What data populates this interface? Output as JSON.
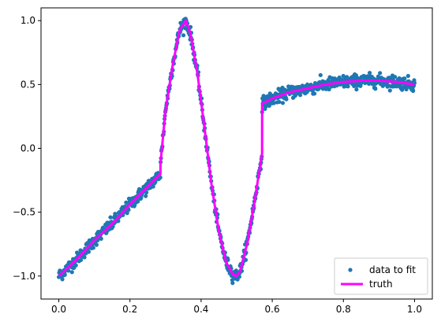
{
  "chart_data": {
    "type": "scatter",
    "xlim": [
      -0.05,
      1.05
    ],
    "ylim": [
      -1.18,
      1.1
    ],
    "x_ticks": [
      0.0,
      0.2,
      0.4,
      0.6,
      0.8,
      1.0
    ],
    "x_tick_labels": [
      "0.0",
      "0.2",
      "0.4",
      "0.6",
      "0.8",
      "1.0"
    ],
    "y_ticks": [
      -1.0,
      -0.5,
      0.0,
      0.5,
      1.0
    ],
    "y_tick_labels": [
      "−1.0",
      "−0.5",
      "0.0",
      "0.5",
      "1.0"
    ],
    "grid": false,
    "legend_position": "lower-right",
    "series": [
      {
        "name": "data to fit",
        "kind": "scatter",
        "color": "#1f77b4",
        "n_points": 1000,
        "noise_sd": 0.025
      },
      {
        "name": "truth",
        "kind": "line",
        "color": "#ff00ff",
        "x": [
          0.0,
          0.05,
          0.1,
          0.15,
          0.2,
          0.25,
          0.2857,
          0.2858,
          0.3,
          0.32,
          0.34,
          0.357,
          0.37,
          0.39,
          0.41,
          0.43,
          0.45,
          0.47,
          0.49,
          0.5,
          0.51,
          0.53,
          0.55,
          0.5714,
          0.5715,
          0.6,
          0.65,
          0.7,
          0.75,
          0.8,
          0.85,
          0.9,
          0.95,
          1.0
        ],
        "y": [
          -1.0,
          -0.87,
          -0.72,
          -0.59,
          -0.44,
          -0.3,
          -0.2,
          -0.12,
          0.3,
          0.65,
          0.93,
          1.0,
          0.9,
          0.58,
          0.15,
          -0.3,
          -0.65,
          -0.89,
          -0.99,
          -1.0,
          -0.96,
          -0.74,
          -0.42,
          -0.04,
          0.35,
          0.39,
          0.44,
          0.47,
          0.5,
          0.52,
          0.53,
          0.53,
          0.52,
          0.5
        ]
      }
    ]
  }
}
